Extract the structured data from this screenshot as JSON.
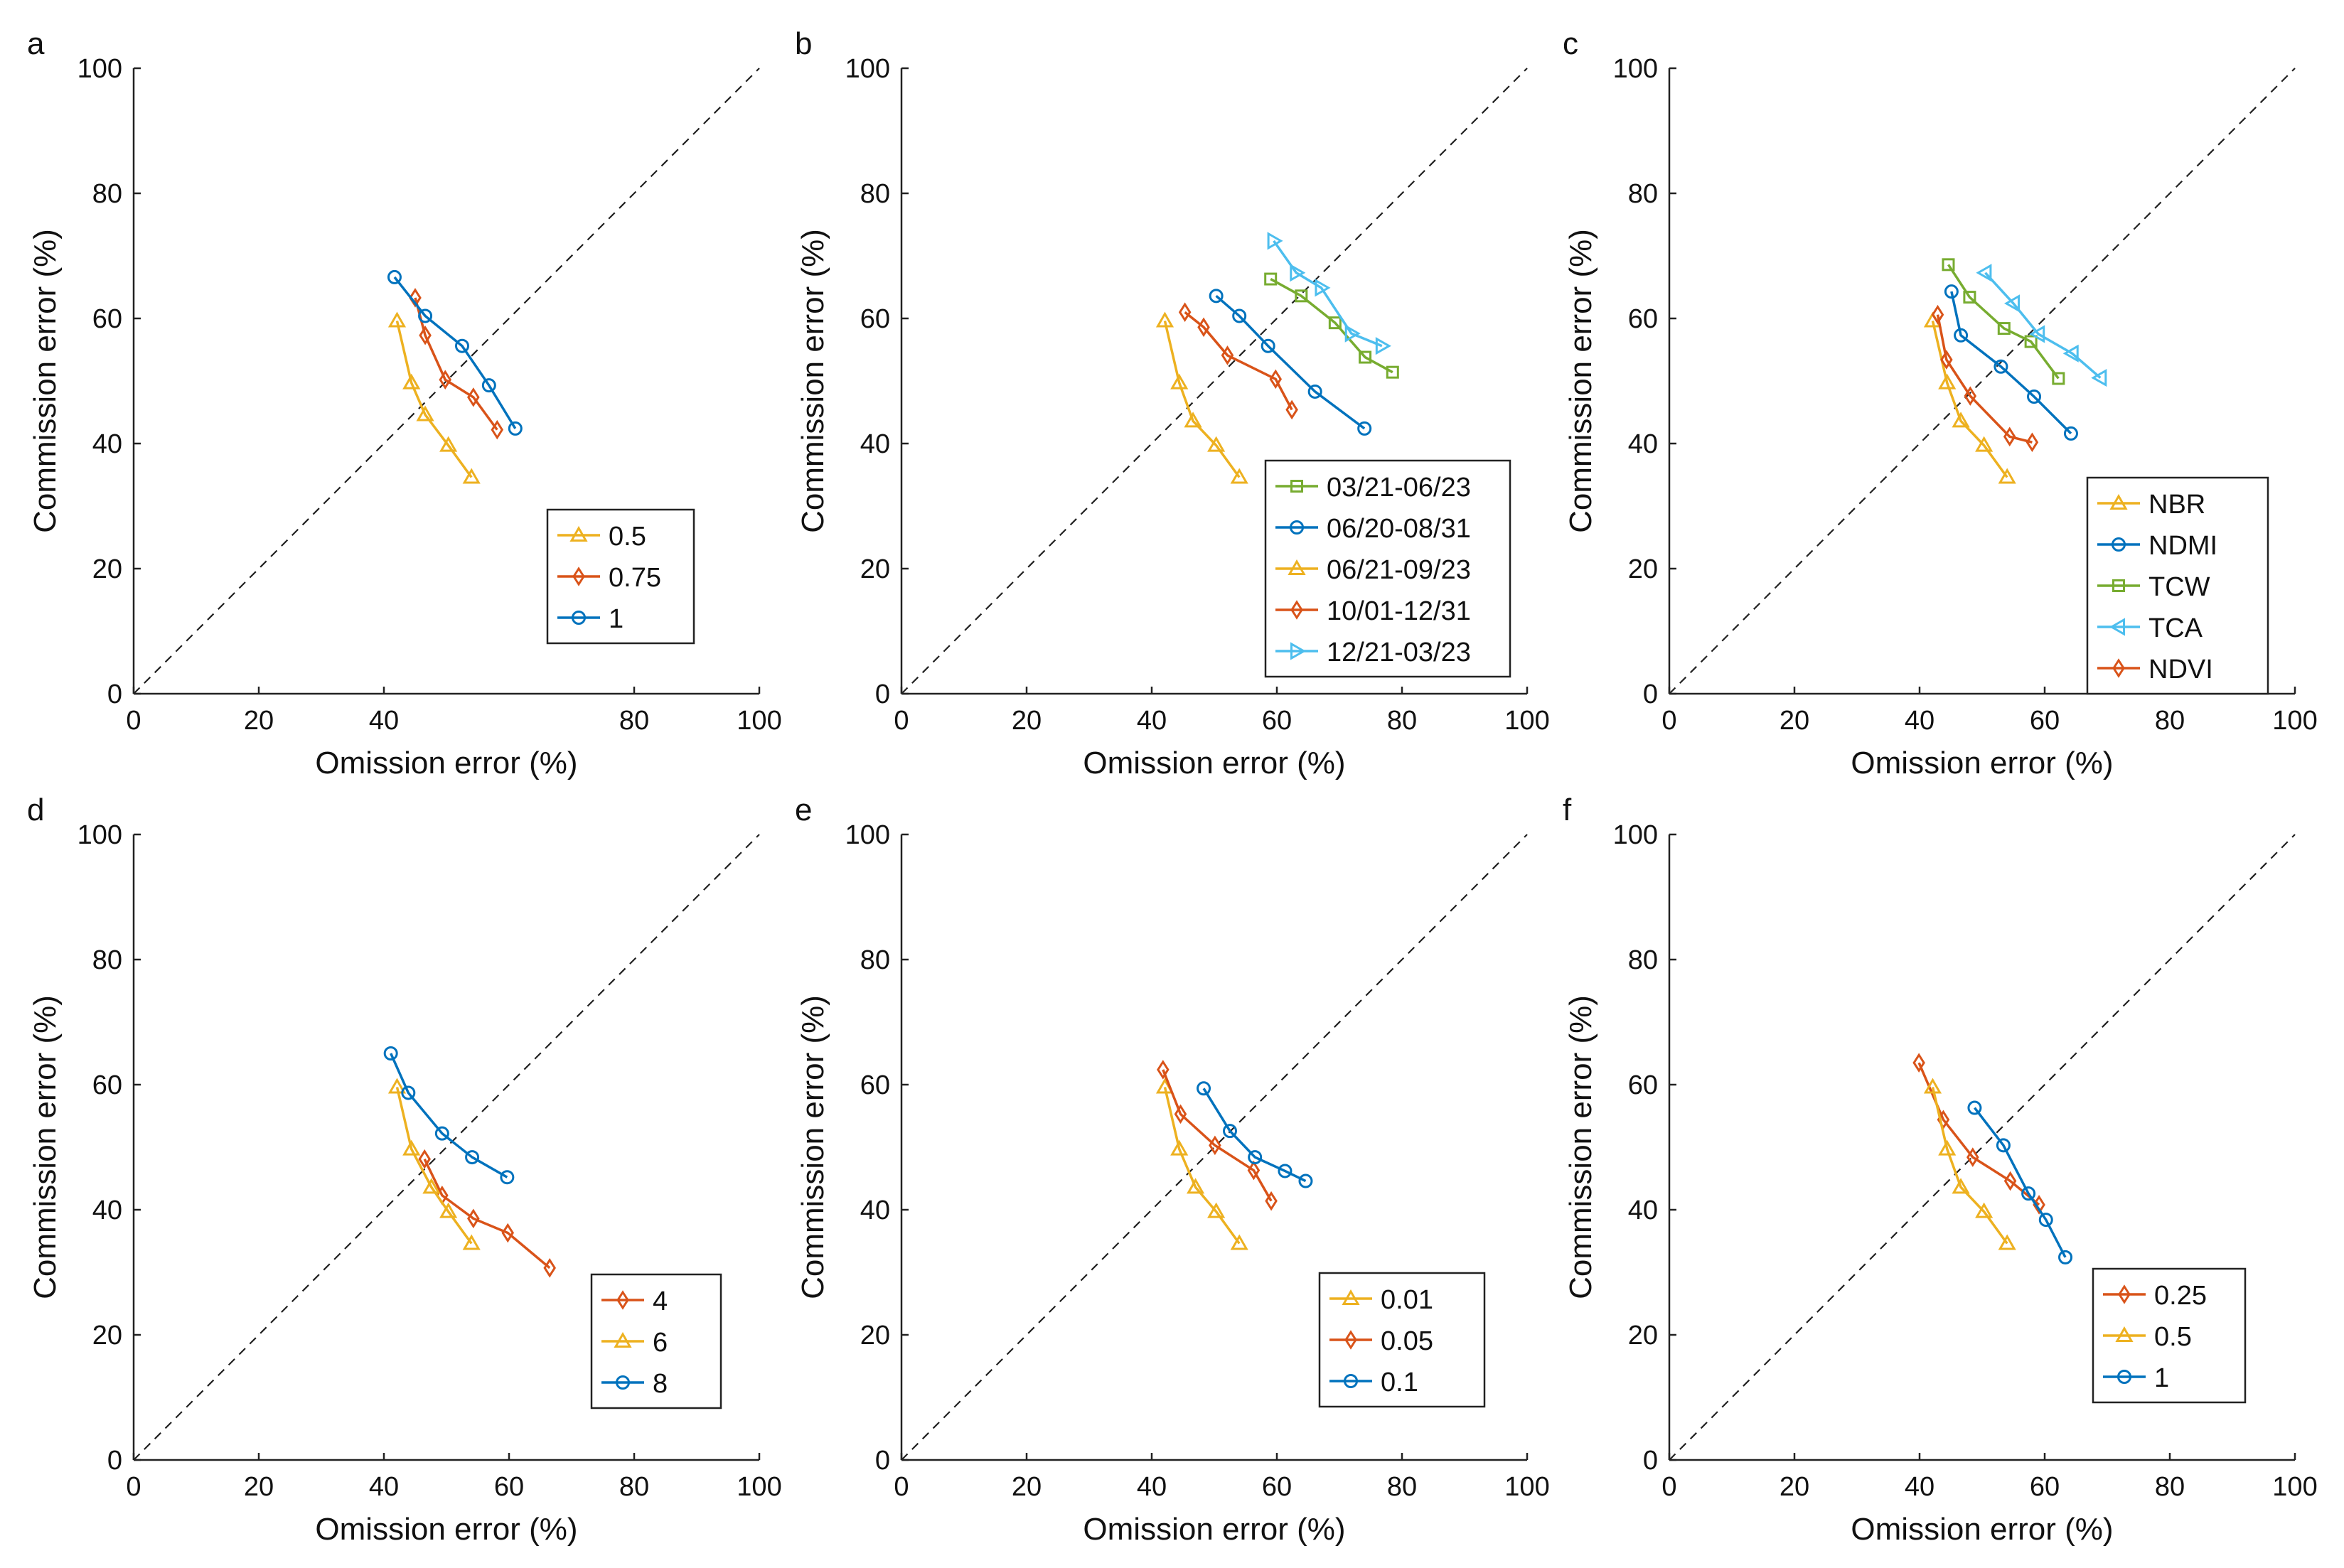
{
  "colors": {
    "orange": "#EDB120",
    "red": "#D95319",
    "blue": "#0072BD",
    "green": "#77AC30",
    "lightblue": "#4DBEEE"
  },
  "chart_data": [
    {
      "panel": "a",
      "type": "line",
      "xlabel": "Omission error (%)",
      "ylabel": "Commission error (%)",
      "xlim": [
        0,
        100
      ],
      "ylim": [
        0,
        100
      ],
      "xticks": [
        "0",
        "20",
        "40",
        "80",
        "100"
      ],
      "xtick_values": [
        0,
        20,
        40,
        80,
        100
      ],
      "yticks": [
        "0",
        "20",
        "40",
        "60",
        "80",
        "100"
      ],
      "ytick_values": [
        0,
        20,
        40,
        60,
        80,
        100
      ],
      "legend": "bottom-right",
      "series": [
        {
          "name": "0.5",
          "color": "orange",
          "marker": "triangle-up",
          "x": [
            42.1,
            44.4,
            46.6,
            50.3,
            54.0
          ],
          "y": [
            59.6,
            49.7,
            44.6,
            39.7,
            34.6
          ]
        },
        {
          "name": "0.75",
          "color": "red",
          "marker": "diamond",
          "x": [
            45.0,
            46.6,
            49.8,
            54.3,
            58.1
          ],
          "y": [
            63.3,
            57.3,
            50.2,
            47.4,
            42.2
          ]
        },
        {
          "name": "1",
          "color": "blue",
          "marker": "circle",
          "x": [
            41.7,
            46.6,
            52.5,
            56.8,
            61.0
          ],
          "y": [
            66.6,
            60.4,
            55.6,
            49.3,
            42.4
          ]
        }
      ]
    },
    {
      "panel": "b",
      "type": "line",
      "xlabel": "Omission error (%)",
      "ylabel": "Commission error (%)",
      "xlim": [
        0,
        100
      ],
      "ylim": [
        0,
        100
      ],
      "xticks": [
        "0",
        "20",
        "40",
        "60",
        "80",
        "100"
      ],
      "xtick_values": [
        0,
        20,
        40,
        60,
        80,
        100
      ],
      "yticks": [
        "0",
        "20",
        "40",
        "60",
        "80",
        "100"
      ],
      "ytick_values": [
        0,
        20,
        40,
        60,
        80,
        100
      ],
      "legend": "bottom-right",
      "series": [
        {
          "name": "03/21-06/23",
          "color": "green",
          "marker": "square",
          "x": [
            59.0,
            63.9,
            69.3,
            74.1,
            78.5
          ],
          "y": [
            66.3,
            63.6,
            59.3,
            53.8,
            51.4
          ]
        },
        {
          "name": "06/20-08/31",
          "color": "blue",
          "marker": "circle",
          "x": [
            50.3,
            54.0,
            58.6,
            66.1,
            74.0
          ],
          "y": [
            63.6,
            60.4,
            55.6,
            48.3,
            42.4
          ]
        },
        {
          "name": "06/21-09/23",
          "color": "orange",
          "marker": "triangle-up",
          "x": [
            42.1,
            44.4,
            46.6,
            50.3,
            54.0
          ],
          "y": [
            59.6,
            49.7,
            43.6,
            39.7,
            34.6
          ]
        },
        {
          "name": "10/01-12/31",
          "color": "red",
          "marker": "diamond",
          "x": [
            45.3,
            48.3,
            52.1,
            59.8,
            62.4
          ],
          "y": [
            61.0,
            58.6,
            54.1,
            50.3,
            45.4
          ]
        },
        {
          "name": "12/21-03/23",
          "color": "lightblue",
          "marker": "triangle-right",
          "x": [
            59.5,
            63.1,
            67.1,
            71.9,
            76.8
          ],
          "y": [
            72.4,
            67.3,
            64.9,
            57.6,
            55.6
          ]
        }
      ]
    },
    {
      "panel": "c",
      "type": "line",
      "xlabel": "Omission error (%)",
      "ylabel": "Commission error (%)",
      "xlim": [
        0,
        100
      ],
      "ylim": [
        0,
        100
      ],
      "xticks": [
        "0",
        "20",
        "40",
        "60",
        "80",
        "100"
      ],
      "xtick_values": [
        0,
        20,
        40,
        60,
        80,
        100
      ],
      "yticks": [
        "0",
        "20",
        "40",
        "60",
        "80",
        "100"
      ],
      "ytick_values": [
        0,
        20,
        40,
        60,
        80,
        100
      ],
      "legend": "bottom-right",
      "series": [
        {
          "name": "NBR",
          "color": "orange",
          "marker": "triangle-up",
          "x": [
            42.1,
            44.4,
            46.6,
            50.3,
            54.0
          ],
          "y": [
            59.6,
            49.7,
            43.6,
            39.7,
            34.6
          ]
        },
        {
          "name": "NDMI",
          "color": "blue",
          "marker": "circle",
          "x": [
            45.1,
            46.6,
            53.0,
            58.3,
            64.2
          ],
          "y": [
            64.3,
            57.3,
            52.3,
            47.5,
            41.6
          ]
        },
        {
          "name": "TCW",
          "color": "green",
          "marker": "square",
          "x": [
            44.6,
            48.0,
            53.5,
            57.8,
            62.2
          ],
          "y": [
            68.6,
            63.4,
            58.4,
            56.3,
            50.4
          ]
        },
        {
          "name": "TCA",
          "color": "lightblue",
          "marker": "triangle-left",
          "x": [
            50.5,
            55.0,
            59.0,
            64.4,
            68.9
          ],
          "y": [
            67.3,
            62.4,
            57.5,
            54.4,
            50.5
          ]
        },
        {
          "name": "NDVI",
          "color": "red",
          "marker": "diamond",
          "x": [
            42.9,
            44.3,
            48.1,
            54.4,
            58.0
          ],
          "y": [
            60.6,
            53.4,
            47.6,
            41.1,
            40.2
          ]
        }
      ]
    },
    {
      "panel": "d",
      "type": "line",
      "xlabel": "Omission error (%)",
      "ylabel": "Commission error (%)",
      "xlim": [
        0,
        100
      ],
      "ylim": [
        0,
        100
      ],
      "xticks": [
        "0",
        "20",
        "40",
        "60",
        "80",
        "100"
      ],
      "xtick_values": [
        0,
        20,
        40,
        60,
        80,
        100
      ],
      "yticks": [
        "0",
        "20",
        "40",
        "60",
        "80",
        "100"
      ],
      "ytick_values": [
        0,
        20,
        40,
        60,
        80,
        100
      ],
      "legend": "bottom-right",
      "series": [
        {
          "name": "4",
          "color": "red",
          "marker": "diamond",
          "x": [
            46.5,
            49.3,
            54.3,
            59.8,
            66.5
          ],
          "y": [
            48.1,
            42.3,
            38.6,
            36.3,
            30.7
          ]
        },
        {
          "name": "6",
          "color": "orange",
          "marker": "triangle-up",
          "x": [
            42.1,
            44.4,
            47.6,
            50.3,
            54.0
          ],
          "y": [
            59.6,
            49.7,
            43.6,
            39.7,
            34.6
          ]
        },
        {
          "name": "8",
          "color": "blue",
          "marker": "circle",
          "x": [
            41.1,
            43.9,
            49.3,
            54.1,
            59.7
          ],
          "y": [
            65.0,
            58.7,
            52.2,
            48.4,
            45.2
          ]
        }
      ]
    },
    {
      "panel": "e",
      "type": "line",
      "xlabel": "Omission error (%)",
      "ylabel": "Commission error (%)",
      "xlim": [
        0,
        100
      ],
      "ylim": [
        0,
        100
      ],
      "xticks": [
        "0",
        "20",
        "40",
        "60",
        "80",
        "100"
      ],
      "xtick_values": [
        0,
        20,
        40,
        60,
        80,
        100
      ],
      "yticks": [
        "0",
        "20",
        "40",
        "60",
        "80",
        "100"
      ],
      "ytick_values": [
        0,
        20,
        40,
        60,
        80,
        100
      ],
      "legend": "bottom-right",
      "series": [
        {
          "name": "0.01",
          "color": "orange",
          "marker": "triangle-up",
          "x": [
            42.1,
            44.4,
            47.0,
            50.3,
            54.0
          ],
          "y": [
            59.6,
            49.7,
            43.6,
            39.7,
            34.6
          ]
        },
        {
          "name": "0.05",
          "color": "red",
          "marker": "diamond",
          "x": [
            41.8,
            44.6,
            50.1,
            56.3,
            59.1
          ],
          "y": [
            62.4,
            55.3,
            50.3,
            46.3,
            41.4
          ]
        },
        {
          "name": "0.1",
          "color": "blue",
          "marker": "circle",
          "x": [
            48.3,
            52.5,
            56.5,
            61.3,
            64.6
          ],
          "y": [
            59.4,
            52.6,
            48.4,
            46.2,
            44.6
          ]
        }
      ]
    },
    {
      "panel": "f",
      "type": "line",
      "xlabel": "Omission error (%)",
      "ylabel": "Commission error (%)",
      "xlim": [
        0,
        100
      ],
      "ylim": [
        0,
        100
      ],
      "xticks": [
        "0",
        "20",
        "40",
        "60",
        "80",
        "100"
      ],
      "xtick_values": [
        0,
        20,
        40,
        60,
        80,
        100
      ],
      "yticks": [
        "0",
        "20",
        "40",
        "60",
        "80",
        "100"
      ],
      "ytick_values": [
        0,
        20,
        40,
        60,
        80,
        100
      ],
      "legend": "bottom-left",
      "series": [
        {
          "name": "0.25",
          "color": "red",
          "marker": "diamond",
          "x": [
            39.9,
            43.8,
            48.5,
            54.5,
            59.1
          ],
          "y": [
            63.5,
            54.4,
            48.4,
            44.6,
            40.8
          ]
        },
        {
          "name": "0.5",
          "color": "orange",
          "marker": "triangle-up",
          "x": [
            42.1,
            44.4,
            46.6,
            50.3,
            54.0
          ],
          "y": [
            59.6,
            49.7,
            43.6,
            39.7,
            34.6
          ]
        },
        {
          "name": "1",
          "color": "blue",
          "marker": "circle",
          "x": [
            48.8,
            53.4,
            57.4,
            60.2,
            63.3
          ],
          "y": [
            56.3,
            50.3,
            42.6,
            38.4,
            32.4
          ]
        }
      ]
    }
  ]
}
